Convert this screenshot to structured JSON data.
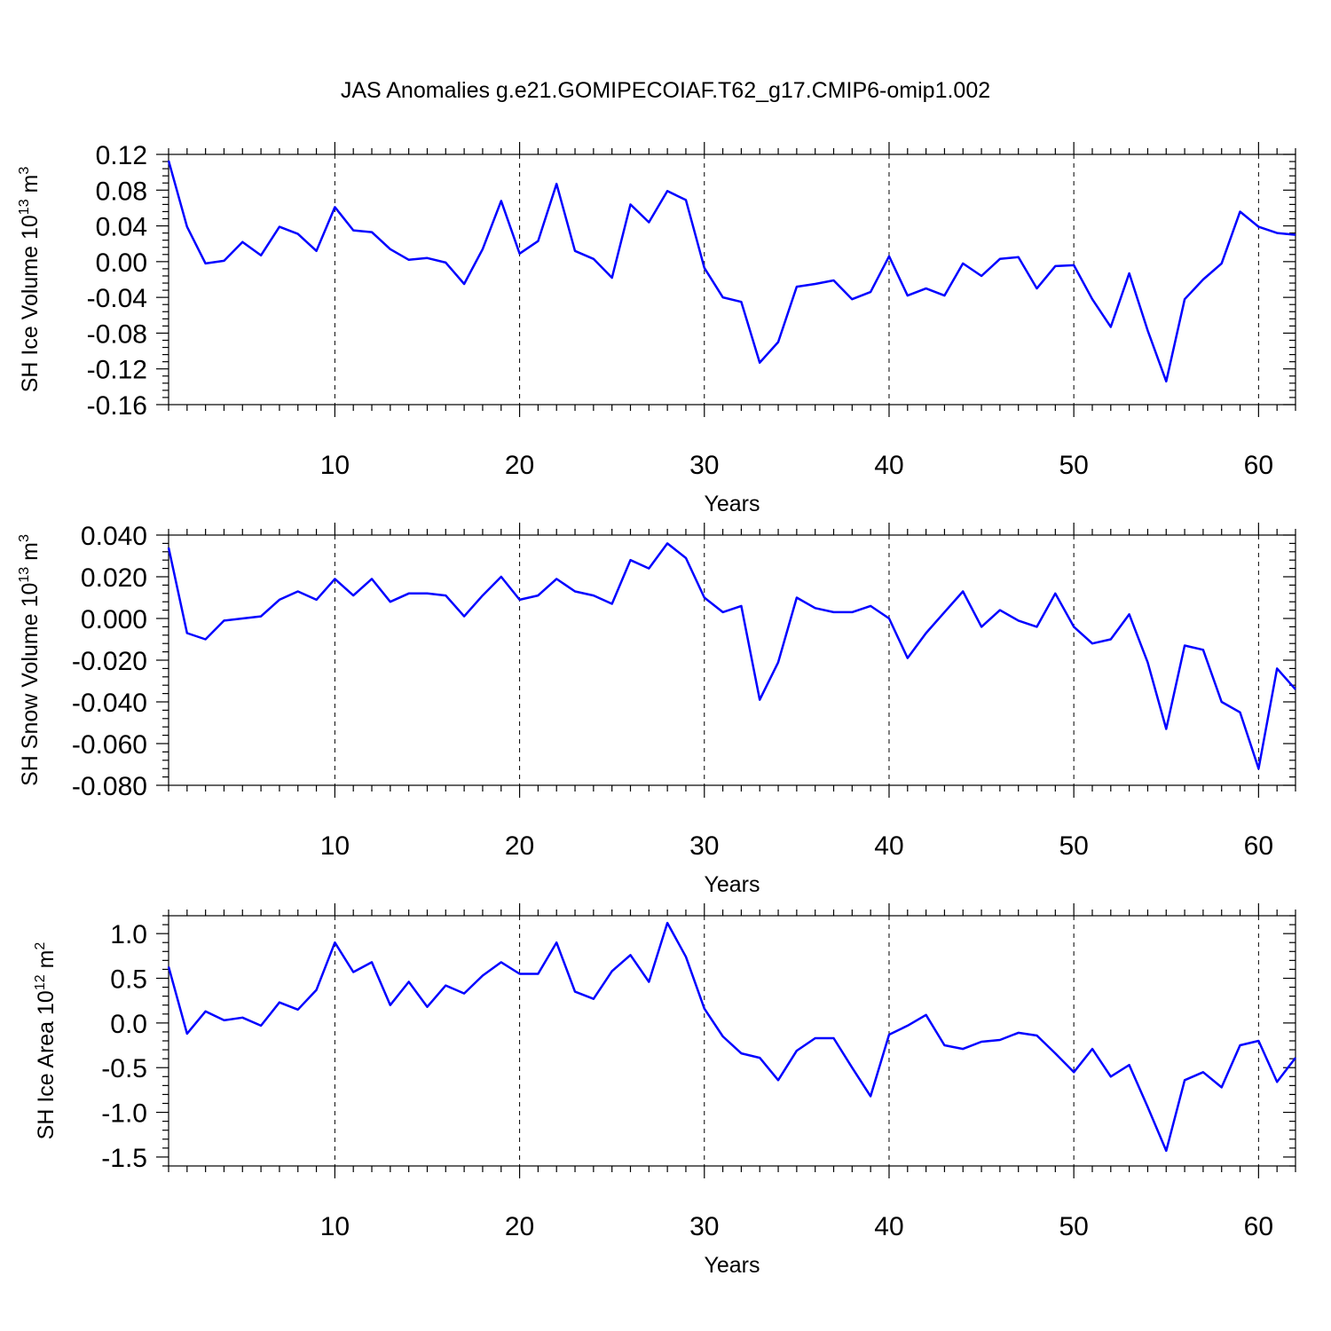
{
  "title": "JAS Anomalies g.e21.GOMIPECOIAF.T62_g17.CMIP6-omip1.002",
  "line_color": "#0000ff",
  "chart_data": [
    {
      "type": "line",
      "ylabel": "SH Ice Volume 10",
      "ylabel_exp": "13",
      "ylabel_unit": " m",
      "ylabel_unit_exp": "3",
      "xlabel": "Years",
      "xlim": [
        1,
        62
      ],
      "ylim": [
        -0.16,
        0.12
      ],
      "xticks": [
        10,
        20,
        30,
        40,
        50,
        60
      ],
      "xtick_labels": [
        "10",
        "20",
        "30",
        "40",
        "50",
        "60"
      ],
      "yticks": [
        0.12,
        0.08,
        0.04,
        0.0,
        -0.04,
        -0.08,
        -0.12,
        -0.16
      ],
      "ytick_labels": [
        "0.12",
        "0.08",
        "0.04",
        "0.00",
        "-0.04",
        "-0.08",
        "-0.12",
        "-0.16"
      ],
      "x": [
        1,
        2,
        3,
        4,
        5,
        6,
        7,
        8,
        9,
        10,
        11,
        12,
        13,
        14,
        15,
        16,
        17,
        18,
        19,
        20,
        21,
        22,
        23,
        24,
        25,
        26,
        27,
        28,
        29,
        30,
        31,
        32,
        33,
        34,
        35,
        36,
        37,
        38,
        39,
        40,
        41,
        42,
        43,
        44,
        45,
        46,
        47,
        48,
        49,
        50,
        51,
        52,
        53,
        54,
        55,
        56,
        57,
        58,
        59,
        60,
        61,
        62
      ],
      "values": [
        0.113,
        0.039,
        -0.002,
        0.001,
        0.022,
        0.007,
        0.039,
        0.031,
        0.012,
        0.061,
        0.035,
        0.033,
        0.014,
        0.002,
        0.004,
        -0.001,
        -0.025,
        0.014,
        0.068,
        0.009,
        0.023,
        0.087,
        0.012,
        0.003,
        -0.018,
        0.064,
        0.044,
        0.079,
        0.069,
        -0.007,
        -0.04,
        -0.045,
        -0.113,
        -0.09,
        -0.028,
        -0.025,
        -0.021,
        -0.042,
        -0.034,
        0.006,
        -0.038,
        -0.03,
        -0.038,
        -0.002,
        -0.016,
        0.003,
        0.005,
        -0.03,
        -0.005,
        -0.004,
        -0.042,
        -0.073,
        -0.013,
        -0.077,
        -0.134,
        -0.042,
        -0.02,
        -0.002,
        0.056,
        0.039,
        0.032,
        0.03
      ]
    },
    {
      "type": "line",
      "ylabel": "SH Snow Volume 10",
      "ylabel_exp": "13",
      "ylabel_unit": " m",
      "ylabel_unit_exp": "3",
      "xlabel": "Years",
      "xlim": [
        1,
        62
      ],
      "ylim": [
        -0.08,
        0.04
      ],
      "xticks": [
        10,
        20,
        30,
        40,
        50,
        60
      ],
      "xtick_labels": [
        "10",
        "20",
        "30",
        "40",
        "50",
        "60"
      ],
      "yticks": [
        0.04,
        0.02,
        0.0,
        -0.02,
        -0.04,
        -0.06,
        -0.08
      ],
      "ytick_labels": [
        "0.040",
        "0.020",
        "0.000",
        "-0.020",
        "-0.040",
        "-0.060",
        "-0.080"
      ],
      "x": [
        1,
        2,
        3,
        4,
        5,
        6,
        7,
        8,
        9,
        10,
        11,
        12,
        13,
        14,
        15,
        16,
        17,
        18,
        19,
        20,
        21,
        22,
        23,
        24,
        25,
        26,
        27,
        28,
        29,
        30,
        31,
        32,
        33,
        34,
        35,
        36,
        37,
        38,
        39,
        40,
        41,
        42,
        43,
        44,
        45,
        46,
        47,
        48,
        49,
        50,
        51,
        52,
        53,
        54,
        55,
        56,
        57,
        58,
        59,
        60,
        61,
        62
      ],
      "values": [
        0.034,
        -0.007,
        -0.01,
        -0.001,
        0.0,
        0.001,
        0.009,
        0.013,
        0.009,
        0.019,
        0.011,
        0.019,
        0.008,
        0.012,
        0.012,
        0.011,
        0.001,
        0.011,
        0.02,
        0.009,
        0.011,
        0.019,
        0.013,
        0.011,
        0.007,
        0.028,
        0.024,
        0.036,
        0.029,
        0.01,
        0.003,
        0.006,
        -0.039,
        -0.021,
        0.01,
        0.005,
        0.003,
        0.003,
        0.006,
        0.0,
        -0.019,
        -0.007,
        0.003,
        0.013,
        -0.004,
        0.004,
        -0.001,
        -0.004,
        0.012,
        -0.004,
        -0.012,
        -0.01,
        0.002,
        -0.021,
        -0.053,
        -0.013,
        -0.015,
        -0.04,
        -0.045,
        -0.072,
        -0.024,
        -0.034
      ]
    },
    {
      "type": "line",
      "ylabel": "SH Ice Area 10",
      "ylabel_exp": "12",
      "ylabel_unit": " m",
      "ylabel_unit_exp": "2",
      "xlabel": "Years",
      "xlim": [
        1,
        62
      ],
      "ylim": [
        -1.6,
        1.2
      ],
      "xticks": [
        10,
        20,
        30,
        40,
        50,
        60
      ],
      "xtick_labels": [
        "10",
        "20",
        "30",
        "40",
        "50",
        "60"
      ],
      "yticks": [
        1.0,
        0.5,
        0.0,
        -0.5,
        -1.0,
        -1.5
      ],
      "ytick_labels": [
        "1.0",
        "0.5",
        "0.0",
        "-0.5",
        "-1.0",
        "-1.5"
      ],
      "x": [
        1,
        2,
        3,
        4,
        5,
        6,
        7,
        8,
        9,
        10,
        11,
        12,
        13,
        14,
        15,
        16,
        17,
        18,
        19,
        20,
        21,
        22,
        23,
        24,
        25,
        26,
        27,
        28,
        29,
        30,
        31,
        32,
        33,
        34,
        35,
        36,
        37,
        38,
        39,
        40,
        41,
        42,
        43,
        44,
        45,
        46,
        47,
        48,
        49,
        50,
        51,
        52,
        53,
        54,
        55,
        56,
        57,
        58,
        59,
        60,
        61,
        62
      ],
      "values": [
        0.63,
        -0.12,
        0.13,
        0.03,
        0.06,
        -0.03,
        0.23,
        0.15,
        0.37,
        0.9,
        0.57,
        0.68,
        0.2,
        0.46,
        0.18,
        0.42,
        0.33,
        0.53,
        0.68,
        0.55,
        0.55,
        0.9,
        0.35,
        0.27,
        0.58,
        0.76,
        0.46,
        1.12,
        0.74,
        0.16,
        -0.15,
        -0.34,
        -0.39,
        -0.64,
        -0.31,
        -0.17,
        -0.17,
        -0.5,
        -0.82,
        -0.13,
        -0.03,
        0.09,
        -0.25,
        -0.29,
        -0.21,
        -0.19,
        -0.11,
        -0.14,
        -0.34,
        -0.55,
        -0.29,
        -0.6,
        -0.47,
        -0.94,
        -1.43,
        -0.64,
        -0.55,
        -0.72,
        -0.25,
        -0.2,
        -0.66,
        -0.39
      ]
    }
  ]
}
